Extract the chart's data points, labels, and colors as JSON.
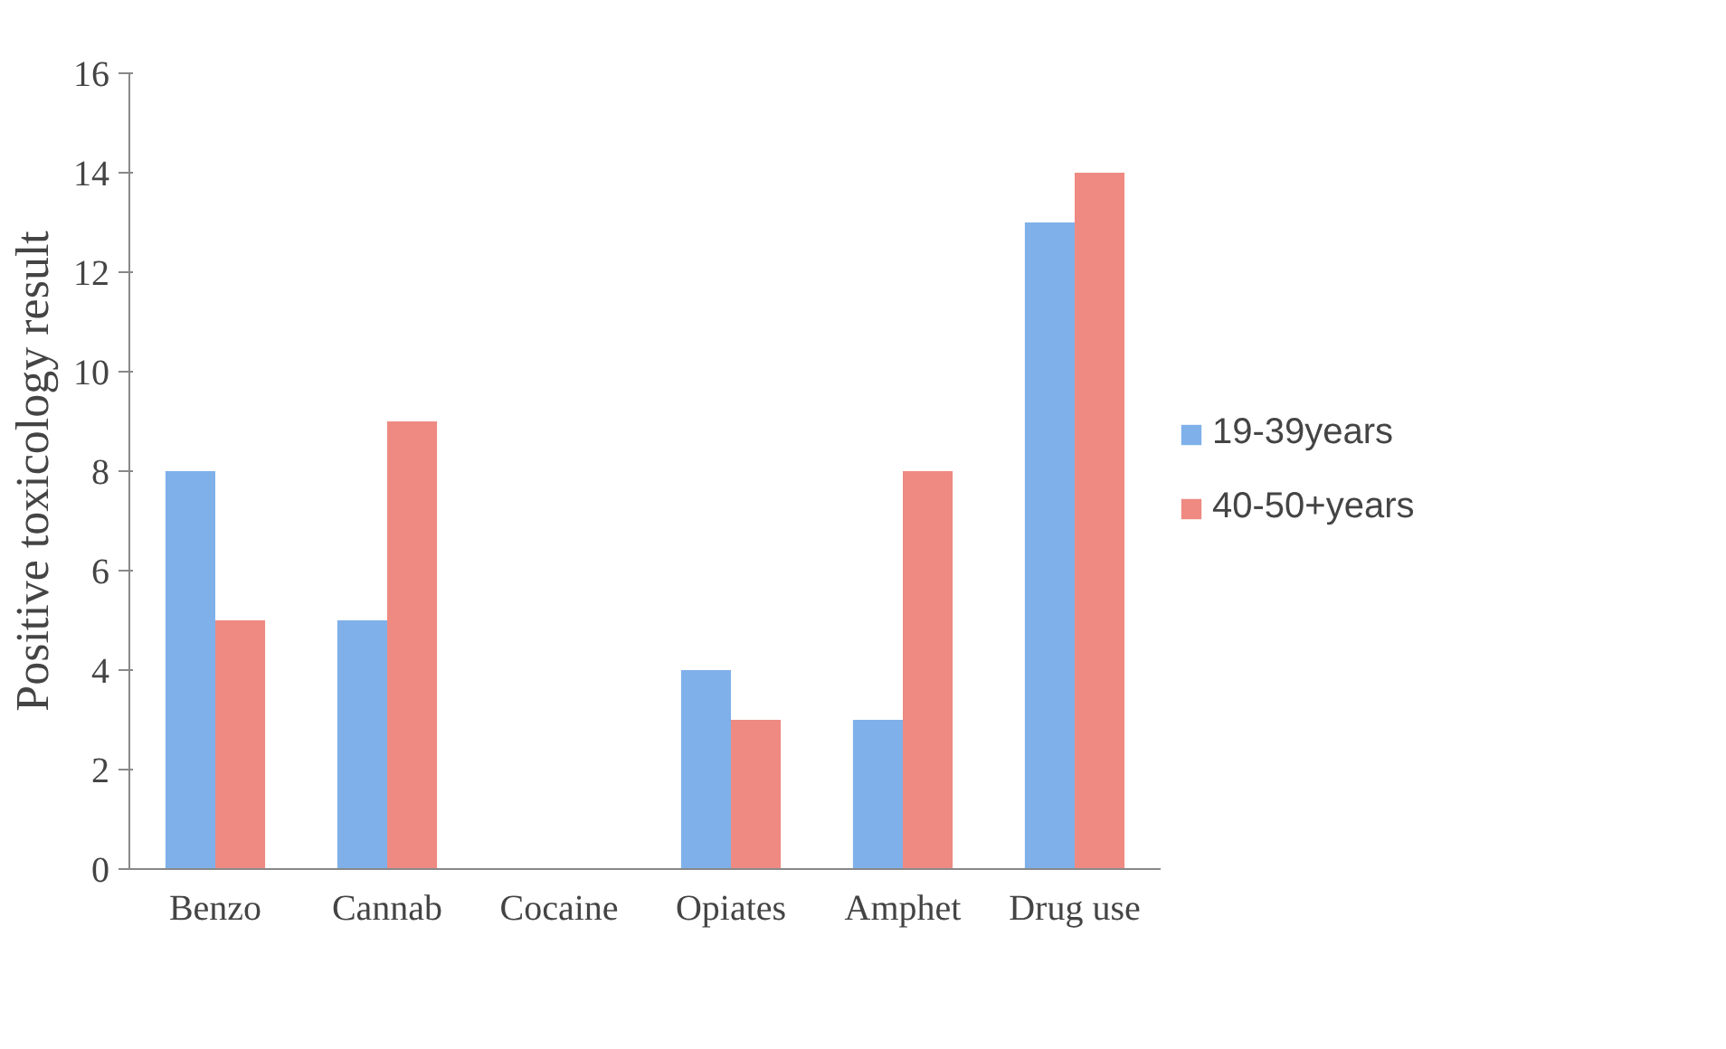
{
  "chart_data": {
    "type": "bar",
    "ylabel": "Positive toxicology result",
    "categories": [
      "Benzo",
      "Cannab",
      "Cocaine",
      "Opiates",
      "Amphet",
      "Drug use"
    ],
    "series": [
      {
        "name": "19-39years",
        "color": "#7fb0ea",
        "values": [
          8,
          5,
          0,
          4,
          3,
          13
        ]
      },
      {
        "name": "40-50+years",
        "color": "#ee8a82",
        "values": [
          5,
          9,
          0,
          3,
          8,
          14
        ]
      }
    ],
    "ylim": [
      0,
      16
    ],
    "yticks": [
      0,
      2,
      4,
      6,
      8,
      10,
      12,
      14,
      16
    ],
    "grid": false,
    "legend": "right"
  }
}
